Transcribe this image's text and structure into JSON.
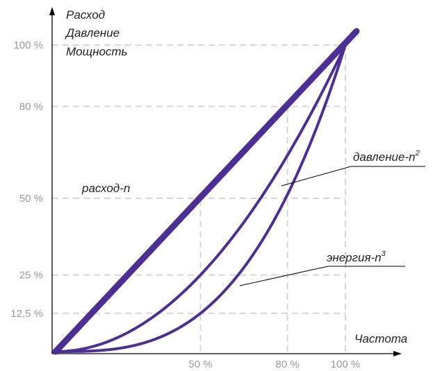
{
  "chart_data": {
    "type": "line",
    "y_axis_label_lines": [
      "Расход",
      "Давление",
      "Мощность"
    ],
    "xlabel": "Частота",
    "x_ticks": [
      "50 %",
      "80 %",
      "100 %"
    ],
    "x_tick_values": [
      50,
      80,
      100
    ],
    "y_ticks": [
      "100 %",
      "80 %",
      "50 %",
      "25 %",
      "12,5 %"
    ],
    "y_tick_values": [
      100,
      80,
      50,
      25,
      12.5
    ],
    "xlim": [
      0,
      100
    ],
    "ylim": [
      0,
      100
    ],
    "grid": "dashed",
    "series_color": "#4b2f96",
    "grid_color": "#d6d6d6",
    "annotations": {
      "flow": {
        "text": "расход-n"
      },
      "pressure": {
        "text": "давление-n",
        "sup": "2"
      },
      "energy": {
        "text": "энергия-n",
        "sup": "3"
      }
    },
    "series": [
      {
        "name": "расход-n",
        "exponent": 1,
        "x": [
          0,
          50,
          80,
          100
        ],
        "y": [
          0,
          50,
          80,
          100
        ]
      },
      {
        "name": "давление-n²",
        "exponent": 2,
        "x": [
          0,
          50,
          80,
          100
        ],
        "y": [
          0,
          25,
          64,
          100
        ]
      },
      {
        "name": "энергия-n³",
        "exponent": 3,
        "x": [
          0,
          50,
          80,
          100
        ],
        "y": [
          0,
          12.5,
          51.2,
          100
        ]
      }
    ]
  }
}
